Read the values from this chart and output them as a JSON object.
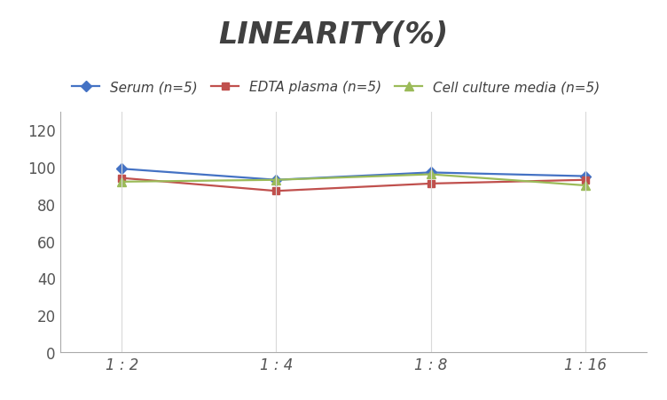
{
  "title": "LINEARITY(%)",
  "x_labels": [
    "1 : 2",
    "1 : 4",
    "1 : 8",
    "1 : 16"
  ],
  "x_positions": [
    0,
    1,
    2,
    3
  ],
  "series": [
    {
      "label": "Serum (n=5)",
      "values": [
        99,
        93,
        97,
        95
      ],
      "color": "#4472C4",
      "marker": "D",
      "markersize": 6
    },
    {
      "label": "EDTA plasma (n=5)",
      "values": [
        94,
        87,
        91,
        93
      ],
      "color": "#C0504D",
      "marker": "s",
      "markersize": 6
    },
    {
      "label": "Cell culture media (n=5)",
      "values": [
        92,
        93,
        96,
        90
      ],
      "color": "#9BBB59",
      "marker": "^",
      "markersize": 7
    }
  ],
  "ylim": [
    0,
    130
  ],
  "yticks": [
    0,
    20,
    40,
    60,
    80,
    100,
    120
  ],
  "grid_color": "#D9D9D9",
  "background_color": "#FFFFFF",
  "title_fontsize": 24,
  "legend_fontsize": 11,
  "tick_fontsize": 12,
  "linewidth": 1.6
}
